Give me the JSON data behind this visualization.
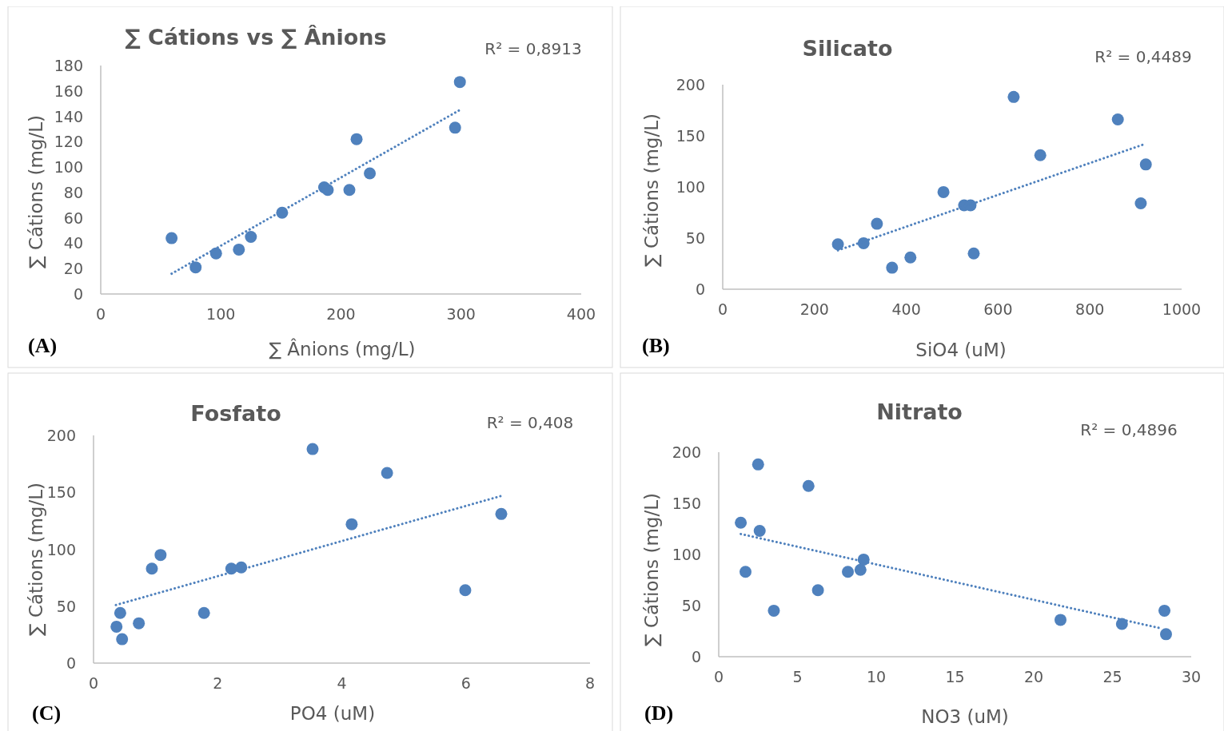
{
  "chart_data": [
    {
      "type": "scatter",
      "title": "∑ Cátions vs ∑ Ânions",
      "xlabel": "∑ Ânions (mg/L)",
      "ylabel": "∑ Cátions (mg/L)",
      "annotations": [
        "R² = 0,8913",
        "(A)"
      ],
      "marker": "circle",
      "xlim": [
        0,
        400
      ],
      "xticks": [
        0,
        100,
        200,
        300,
        400
      ],
      "ylim": [
        0,
        180
      ],
      "yticks": [
        0,
        20,
        40,
        60,
        80,
        100,
        120,
        140,
        160,
        180
      ],
      "series": [
        {
          "type": "scatter",
          "color": "#4f81bd",
          "x": [
            59,
            79,
            96,
            115,
            125,
            151,
            186,
            189,
            207,
            213,
            224,
            295,
            299
          ],
          "values": [
            44,
            21,
            32,
            35,
            45,
            64,
            84,
            82,
            82,
            122,
            95,
            131,
            167
          ]
        },
        {
          "type": "line",
          "color": "#4f81bd",
          "line_style": "dotted",
          "marker": "none",
          "x": [
            59,
            299
          ],
          "values": [
            16,
            145
          ]
        }
      ]
    },
    {
      "type": "scatter",
      "title": "Silicato",
      "xlabel": "SiO4 (uM)",
      "ylabel": "∑ Cátions (mg/L)",
      "annotations": [
        "R² = 0,4489",
        "(B)"
      ],
      "marker": "circle",
      "xlim": [
        0,
        1000
      ],
      "xticks": [
        0,
        200,
        400,
        600,
        800,
        1000
      ],
      "ylim": [
        0,
        200
      ],
      "yticks": [
        0,
        50,
        100,
        150,
        200
      ],
      "series": [
        {
          "type": "scatter",
          "color": "#4f81bd",
          "x": [
            251,
            307,
            336,
            369,
            409,
            481,
            526,
            540,
            547,
            634,
            692,
            861,
            911,
            922
          ],
          "values": [
            44,
            45,
            64,
            21,
            31,
            95,
            82,
            82,
            35,
            188,
            131,
            166,
            84,
            122
          ]
        },
        {
          "type": "line",
          "color": "#4f81bd",
          "line_style": "dotted",
          "marker": "none",
          "x": [
            251,
            920
          ],
          "values": [
            38,
            142
          ]
        }
      ]
    },
    {
      "type": "scatter",
      "title": "Fosfato",
      "xlabel": "PO4 (uM)",
      "ylabel": "∑ Cátions (mg/L)",
      "annotations": [
        "R² = 0,408",
        "(C)"
      ],
      "marker": "circle",
      "xlim": [
        0,
        8
      ],
      "xticks": [
        0,
        2,
        4,
        6,
        8
      ],
      "ylim": [
        0,
        200
      ],
      "yticks": [
        0,
        50,
        100,
        150,
        200
      ],
      "series": [
        {
          "type": "scatter",
          "color": "#4f81bd",
          "x": [
            0.37,
            0.43,
            0.46,
            0.73,
            0.94,
            1.08,
            1.78,
            2.22,
            2.38,
            3.53,
            4.16,
            4.73,
            5.99,
            6.57
          ],
          "values": [
            32,
            44,
            21,
            35,
            83,
            95,
            44,
            83,
            84,
            188,
            122,
            167,
            64,
            131
          ]
        },
        {
          "type": "line",
          "color": "#4f81bd",
          "line_style": "dotted",
          "marker": "none",
          "x": [
            0.36,
            6.58
          ],
          "values": [
            51,
            147
          ]
        }
      ]
    },
    {
      "type": "scatter",
      "title": "Nitrato",
      "xlabel": "NO3 (uM)",
      "ylabel": "∑ Cátions (mg/L)",
      "annotations": [
        "R² = 0,4896",
        "(D)"
      ],
      "marker": "circle",
      "xlim": [
        0,
        30
      ],
      "xticks": [
        0,
        5,
        10,
        15,
        20,
        25,
        30
      ],
      "ylim": [
        0,
        200
      ],
      "yticks": [
        0,
        50,
        100,
        150,
        200
      ],
      "series": [
        {
          "type": "scatter",
          "color": "#4f81bd",
          "x": [
            1.4,
            2.5,
            2.6,
            1.7,
            3.5,
            5.7,
            6.3,
            8.2,
            9.0,
            9.2,
            21.7,
            25.6,
            28.3,
            28.4
          ],
          "values": [
            131,
            188,
            123,
            83,
            45,
            167,
            65,
            83,
            85,
            95,
            36,
            32,
            45,
            22
          ]
        },
        {
          "type": "line",
          "color": "#4f81bd",
          "line_style": "dotted",
          "marker": "none",
          "x": [
            1.4,
            28
          ],
          "values": [
            120,
            28
          ]
        }
      ]
    }
  ]
}
